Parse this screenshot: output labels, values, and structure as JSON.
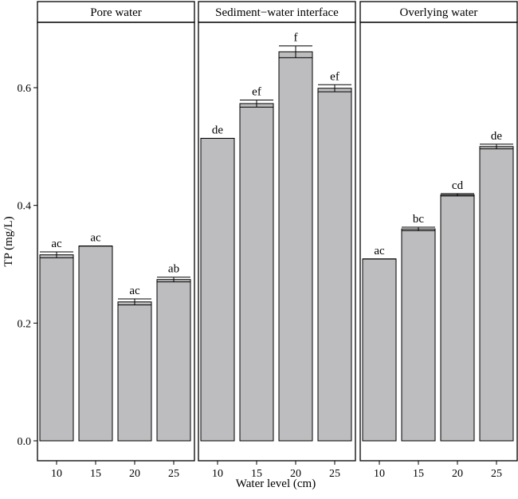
{
  "chart_data": {
    "type": "bar",
    "xlabel": "Water level (cm)",
    "ylabel": "TP (mg/L)",
    "ylim": [
      0,
      0.72
    ],
    "yticks": [
      0.0,
      0.2,
      0.4,
      0.6
    ],
    "ytick_labels": [
      "0.0",
      "0.2",
      "0.4",
      "0.6"
    ],
    "categories": [
      "10",
      "15",
      "20",
      "25"
    ],
    "grid": false,
    "legend": "none",
    "colors": {
      "bar_fill": "#bdbcbe",
      "bar_edge": "#000000",
      "panel_border": "#000000",
      "strip_fill": "#ffffff"
    },
    "panels": [
      {
        "title": "Pore water",
        "values": [
          0.316,
          0.331,
          0.236,
          0.274
        ],
        "errors": [
          0.005,
          0.0,
          0.005,
          0.004
        ],
        "letters": [
          "ac",
          "ac",
          "ac",
          "ab"
        ]
      },
      {
        "title": "Sediment−water interface",
        "values": [
          0.514,
          0.573,
          0.661,
          0.599
        ],
        "errors": [
          0.0,
          0.006,
          0.01,
          0.006
        ],
        "letters": [
          "de",
          "ef",
          "f",
          "ef"
        ]
      },
      {
        "title": "Overlying water",
        "values": [
          0.309,
          0.36,
          0.418,
          0.5
        ],
        "errors": [
          0.0,
          0.003,
          0.002,
          0.004
        ],
        "letters": [
          "ac",
          "bc",
          "cd",
          "de"
        ]
      }
    ]
  }
}
